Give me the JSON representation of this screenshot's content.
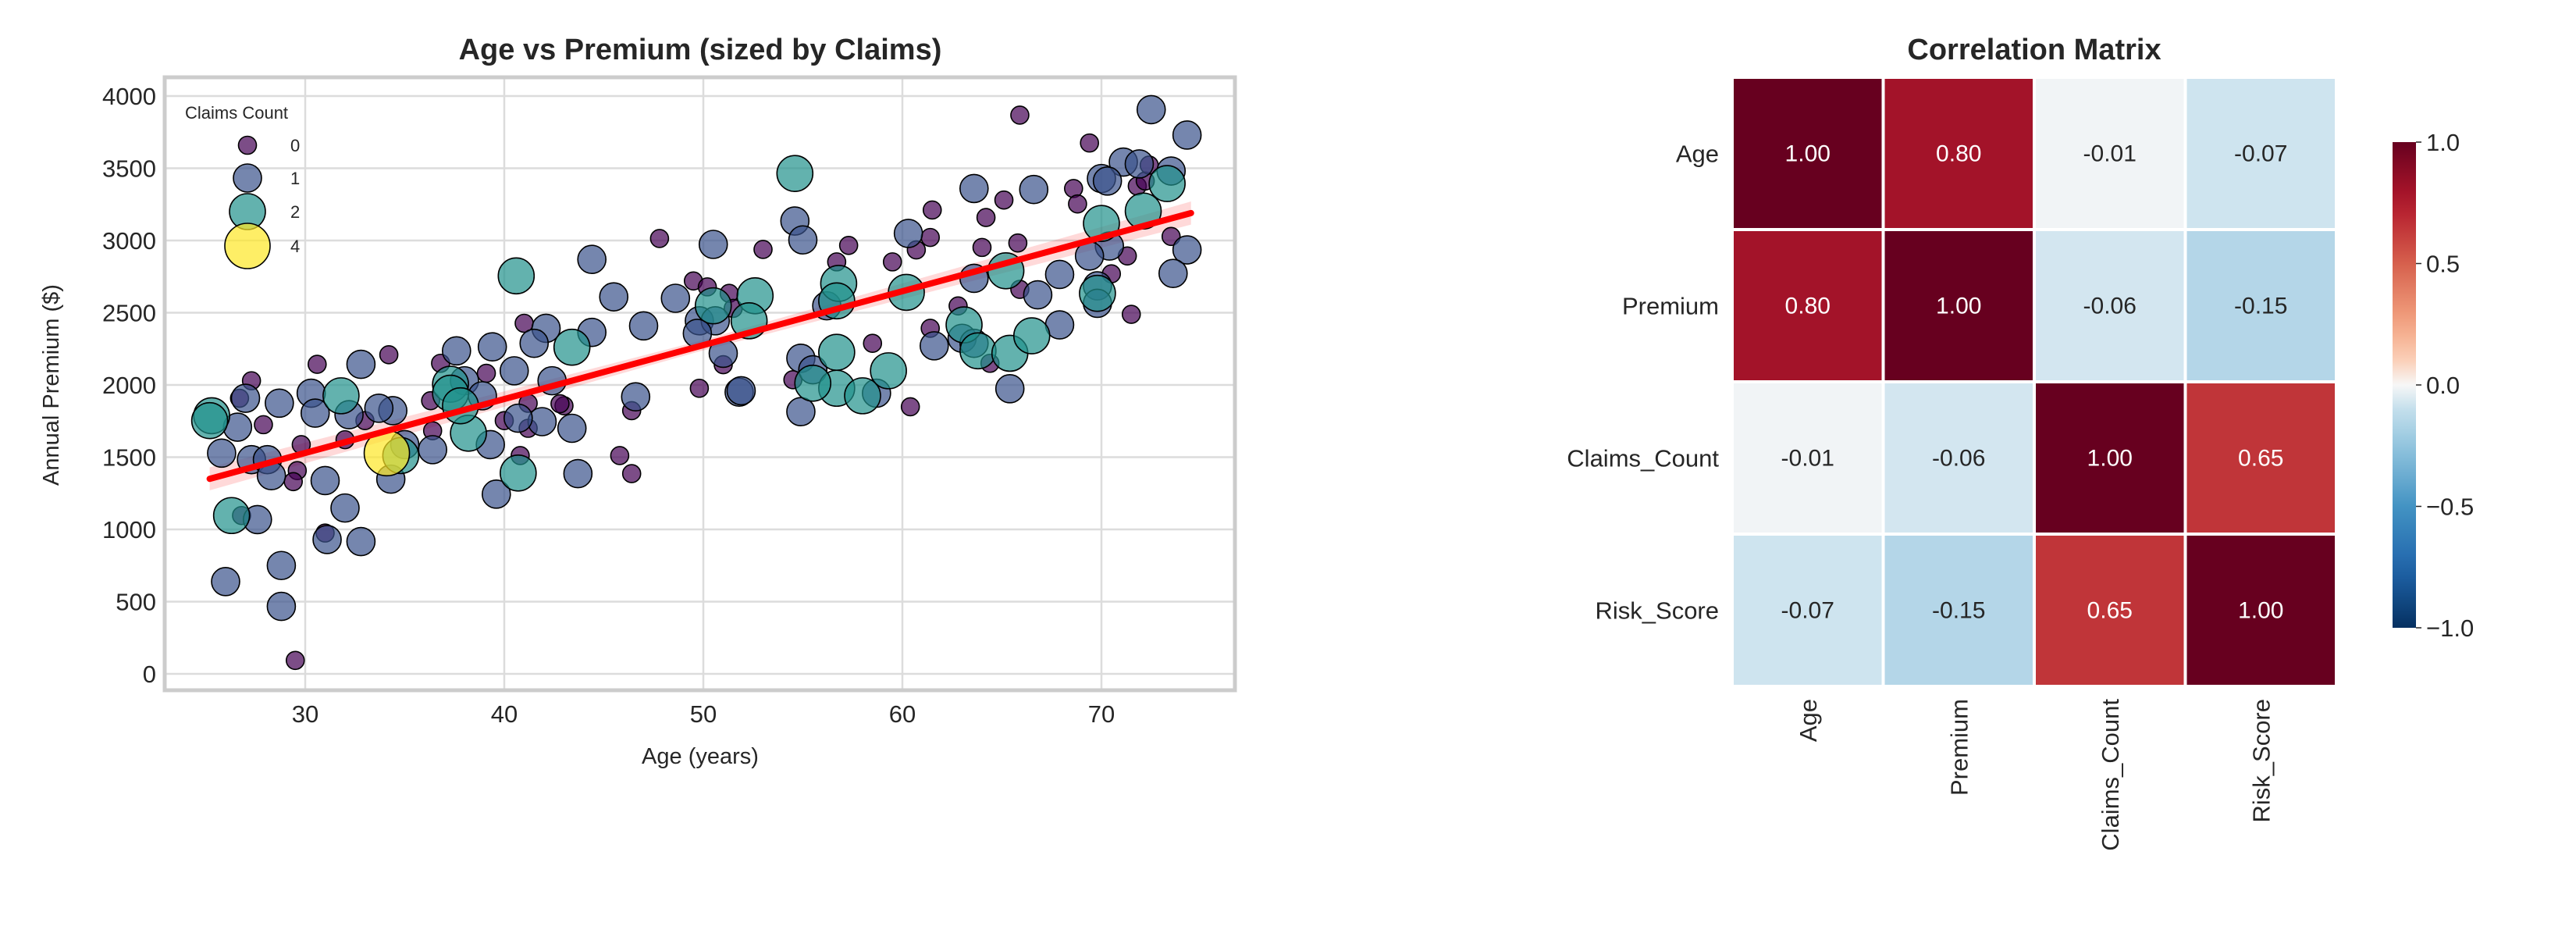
{
  "chart_data": [
    {
      "type": "scatter",
      "title": "Age vs Premium (sized by Claims)",
      "xlabel": "Age (years)",
      "ylabel": "Annual Premium ($)",
      "xlim": [
        22.5,
        76.5
      ],
      "ylim": [
        -100,
        4150
      ],
      "xticks": [
        30,
        40,
        50,
        60,
        70
      ],
      "yticks": [
        0,
        500,
        1000,
        1500,
        2000,
        2500,
        3000,
        3500,
        4000
      ],
      "grid": true,
      "legend": {
        "title": "Claims Count",
        "placement": "top-left",
        "entries": [
          "0",
          "1",
          "2",
          "4"
        ]
      },
      "size_by": "claims",
      "colors": {
        "0": "#440154",
        "1": "#3b528b",
        "2": "#21918c",
        "4": "#fde725"
      },
      "regression_line": {
        "color": "#ff0000",
        "x": [
          25.2,
          74.5
        ],
        "y": [
          1350,
          3190
        ],
        "ci_halfwidth": 80
      },
      "points": [
        [
          65.9,
          3868,
          0
        ],
        [
          69.4,
          3675,
          0
        ],
        [
          47.8,
          3014,
          0
        ],
        [
          53.0,
          2938,
          0
        ],
        [
          57.3,
          2966,
          0
        ],
        [
          61.5,
          3211,
          0
        ],
        [
          65.1,
          3280,
          0
        ],
        [
          64.2,
          3159,
          0
        ],
        [
          68.6,
          3360,
          0
        ],
        [
          68.8,
          3253,
          0
        ],
        [
          71.8,
          3377,
          0
        ],
        [
          72.2,
          3412,
          0
        ],
        [
          72.4,
          3522,
          0
        ],
        [
          73.5,
          3028,
          0
        ],
        [
          71.3,
          2893,
          0
        ],
        [
          70.5,
          2769,
          0
        ],
        [
          71.5,
          2489,
          0
        ],
        [
          64.0,
          2952,
          0
        ],
        [
          65.8,
          2983,
          0
        ],
        [
          65.9,
          2662,
          0
        ],
        [
          60.7,
          2935,
          0
        ],
        [
          59.5,
          2852,
          0
        ],
        [
          56.7,
          2852,
          0
        ],
        [
          61.4,
          3021,
          0
        ],
        [
          62.8,
          2547,
          0
        ],
        [
          61.4,
          2392,
          0
        ],
        [
          58.5,
          2288,
          0
        ],
        [
          64.4,
          2150,
          0
        ],
        [
          60.4,
          1849,
          0
        ],
        [
          54.5,
          2036,
          0
        ],
        [
          49.8,
          1977,
          0
        ],
        [
          49.5,
          2720,
          0
        ],
        [
          50.2,
          2679,
          0
        ],
        [
          51.3,
          2634,
          0
        ],
        [
          51.5,
          2530,
          0
        ],
        [
          51.0,
          2140,
          0
        ],
        [
          46.4,
          1822,
          0
        ],
        [
          46.4,
          1386,
          0
        ],
        [
          45.8,
          1511,
          0
        ],
        [
          43.0,
          1856,
          0
        ],
        [
          42.8,
          1870,
          0
        ],
        [
          41.0,
          2427,
          0
        ],
        [
          41.2,
          1873,
          0
        ],
        [
          41.2,
          1700,
          0
        ],
        [
          40.8,
          1511,
          0
        ],
        [
          40.0,
          1753,
          0
        ],
        [
          39.1,
          2081,
          0
        ],
        [
          36.8,
          2150,
          0
        ],
        [
          36.3,
          1891,
          0
        ],
        [
          36.4,
          1683,
          0
        ],
        [
          34.2,
          2209,
          0
        ],
        [
          33.0,
          1753,
          0
        ],
        [
          30.6,
          2143,
          0
        ],
        [
          29.8,
          1587,
          0
        ],
        [
          29.6,
          1407,
          0
        ],
        [
          29.4,
          1331,
          0
        ],
        [
          29.5,
          93,
          0
        ],
        [
          27.3,
          2029,
          0
        ],
        [
          26.7,
          1908,
          0
        ],
        [
          27.9,
          1725,
          0
        ],
        [
          26.8,
          1096,
          0
        ],
        [
          31.0,
          975,
          0
        ],
        [
          32.0,
          1621,
          0
        ],
        [
          72.5,
          3906,
          1
        ],
        [
          74.3,
          3730,
          1
        ],
        [
          71.1,
          3543,
          1
        ],
        [
          71.9,
          3530,
          1
        ],
        [
          73.5,
          3481,
          1
        ],
        [
          70.0,
          3429,
          1
        ],
        [
          70.3,
          3412,
          1
        ],
        [
          63.6,
          3360,
          1
        ],
        [
          66.6,
          3353,
          1
        ],
        [
          54.6,
          3135,
          1
        ],
        [
          55.0,
          3004,
          1
        ],
        [
          50.5,
          2973,
          1
        ],
        [
          44.4,
          2869,
          1
        ],
        [
          60.3,
          3049,
          1
        ],
        [
          70.4,
          2962,
          1
        ],
        [
          74.3,
          2935,
          1
        ],
        [
          69.4,
          2893,
          1
        ],
        [
          73.6,
          2772,
          1
        ],
        [
          67.9,
          2765,
          1
        ],
        [
          63.6,
          2738,
          1
        ],
        [
          66.8,
          2624,
          1
        ],
        [
          69.8,
          2686,
          1
        ],
        [
          69.8,
          2565,
          1
        ],
        [
          45.5,
          2610,
          1
        ],
        [
          48.6,
          2600,
          1
        ],
        [
          47.0,
          2409,
          1
        ],
        [
          49.8,
          2444,
          1
        ],
        [
          50.6,
          2444,
          1
        ],
        [
          49.7,
          2357,
          1
        ],
        [
          51.0,
          2219,
          1
        ],
        [
          56.2,
          2548,
          1
        ],
        [
          54.9,
          2185,
          1
        ],
        [
          55.5,
          2105,
          1
        ],
        [
          54.9,
          1815,
          1
        ],
        [
          51.8,
          1950,
          1
        ],
        [
          51.9,
          1960,
          1
        ],
        [
          67.9,
          2416,
          1
        ],
        [
          61.6,
          2271,
          1
        ],
        [
          63.0,
          2323,
          1
        ],
        [
          63.6,
          2288,
          1
        ],
        [
          65.4,
          1974,
          1
        ],
        [
          58.7,
          1943,
          1
        ],
        [
          42.1,
          2392,
          1
        ],
        [
          44.4,
          2364,
          1
        ],
        [
          41.5,
          2288,
          1
        ],
        [
          39.4,
          2264,
          1
        ],
        [
          40.5,
          2098,
          1
        ],
        [
          42.4,
          2029,
          1
        ],
        [
          41.9,
          1746,
          1
        ],
        [
          43.4,
          1700,
          1
        ],
        [
          37.6,
          2236,
          1
        ],
        [
          38.0,
          2029,
          1
        ],
        [
          38.9,
          1925,
          1
        ],
        [
          39.3,
          1587,
          1
        ],
        [
          36.4,
          1552,
          1
        ],
        [
          39.6,
          1244,
          1
        ],
        [
          43.7,
          1386,
          1
        ],
        [
          46.6,
          1918,
          1
        ],
        [
          40.7,
          1770,
          1
        ],
        [
          34.4,
          1822,
          1
        ],
        [
          33.7,
          1839,
          1
        ],
        [
          32.8,
          2143,
          1
        ],
        [
          32.2,
          1794,
          1
        ],
        [
          30.3,
          1943,
          1
        ],
        [
          30.5,
          1805,
          1
        ],
        [
          28.7,
          1874,
          1
        ],
        [
          27.0,
          1908,
          1
        ],
        [
          26.6,
          1708,
          1
        ],
        [
          25.8,
          1528,
          1
        ],
        [
          27.3,
          1483,
          1
        ],
        [
          28.1,
          1483,
          1
        ],
        [
          28.3,
          1372,
          1
        ],
        [
          31.0,
          1338,
          1
        ],
        [
          32.0,
          1148,
          1
        ],
        [
          34.3,
          1348,
          1
        ],
        [
          35.0,
          1587,
          1
        ],
        [
          31.1,
          930,
          1
        ],
        [
          32.8,
          916,
          1
        ],
        [
          27.6,
          1068,
          1
        ],
        [
          26.0,
          639,
          1
        ],
        [
          28.8,
          750,
          1
        ],
        [
          28.8,
          467,
          1
        ],
        [
          54.6,
          3464,
          2
        ],
        [
          40.6,
          2755,
          2
        ],
        [
          52.6,
          2617,
          2
        ],
        [
          50.5,
          2548,
          2
        ],
        [
          52.3,
          2444,
          2
        ],
        [
          56.8,
          2703,
          2
        ],
        [
          56.7,
          2582,
          2
        ],
        [
          60.2,
          2641,
          2
        ],
        [
          65.2,
          2790,
          2
        ],
        [
          70.0,
          3118,
          2
        ],
        [
          72.1,
          3204,
          2
        ],
        [
          73.3,
          3394,
          2
        ],
        [
          69.8,
          2634,
          2
        ],
        [
          63.1,
          2416,
          2
        ],
        [
          63.8,
          2236,
          2
        ],
        [
          65.4,
          2219,
          2
        ],
        [
          66.5,
          2340,
          2
        ],
        [
          56.7,
          2226,
          2
        ],
        [
          59.3,
          2098,
          2
        ],
        [
          56.7,
          1977,
          2
        ],
        [
          55.5,
          2012,
          2
        ],
        [
          58.0,
          1925,
          2
        ],
        [
          43.4,
          2261,
          2
        ],
        [
          37.3,
          2005,
          2
        ],
        [
          37.3,
          1943,
          2
        ],
        [
          38.2,
          1666,
          2
        ],
        [
          37.8,
          1856,
          2
        ],
        [
          31.8,
          1925,
          2
        ],
        [
          25.3,
          1787,
          2
        ],
        [
          25.2,
          1753,
          2
        ],
        [
          26.3,
          1096,
          2
        ],
        [
          40.7,
          1390,
          2
        ],
        [
          34.8,
          1511,
          2
        ],
        [
          34.1,
          1528,
          4
        ]
      ]
    },
    {
      "type": "heatmap",
      "title": "Correlation Matrix",
      "labels": [
        "Age",
        "Premium",
        "Claims_Count",
        "Risk_Score"
      ],
      "values": [
        [
          1.0,
          0.8,
          -0.01,
          -0.07
        ],
        [
          0.8,
          1.0,
          -0.06,
          -0.15
        ],
        [
          -0.01,
          -0.06,
          1.0,
          0.65
        ],
        [
          -0.07,
          -0.15,
          0.65,
          1.0
        ]
      ],
      "cell_text": [
        [
          "1.00",
          "0.80",
          "-0.01",
          "-0.07"
        ],
        [
          "0.80",
          "1.00",
          "-0.06",
          "-0.15"
        ],
        [
          "-0.01",
          "-0.06",
          "1.00",
          "0.65"
        ],
        [
          "-0.07",
          "-0.15",
          "0.65",
          "1.00"
        ]
      ],
      "colormap": "RdBu_r",
      "vmin": -1.0,
      "vmax": 1.0,
      "colorbar_ticks": [
        "1.0",
        "0.5",
        "0.0",
        "−0.5",
        "−1.0"
      ],
      "colorbar_values": [
        1.0,
        0.5,
        0.0,
        -0.5,
        -1.0
      ]
    }
  ]
}
